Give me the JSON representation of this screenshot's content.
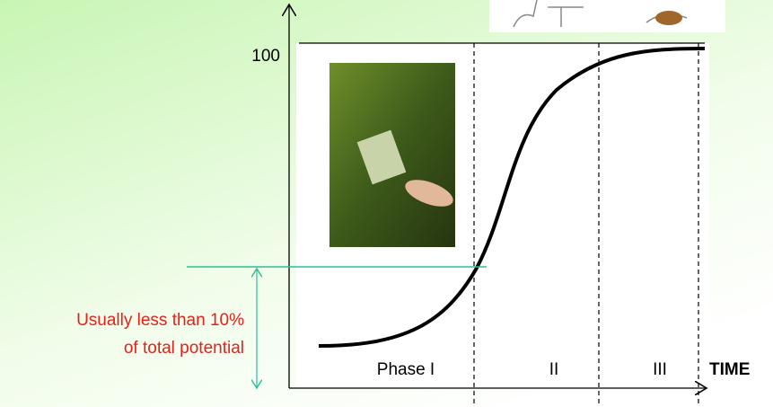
{
  "y_axis": {
    "max_label": "100"
  },
  "annotation": {
    "lines": [
      "Usually less than 10%",
      "of total potential"
    ]
  },
  "phases": [
    "Phase I",
    "II",
    "III"
  ],
  "x_axis": {
    "label": "TIME"
  }
}
